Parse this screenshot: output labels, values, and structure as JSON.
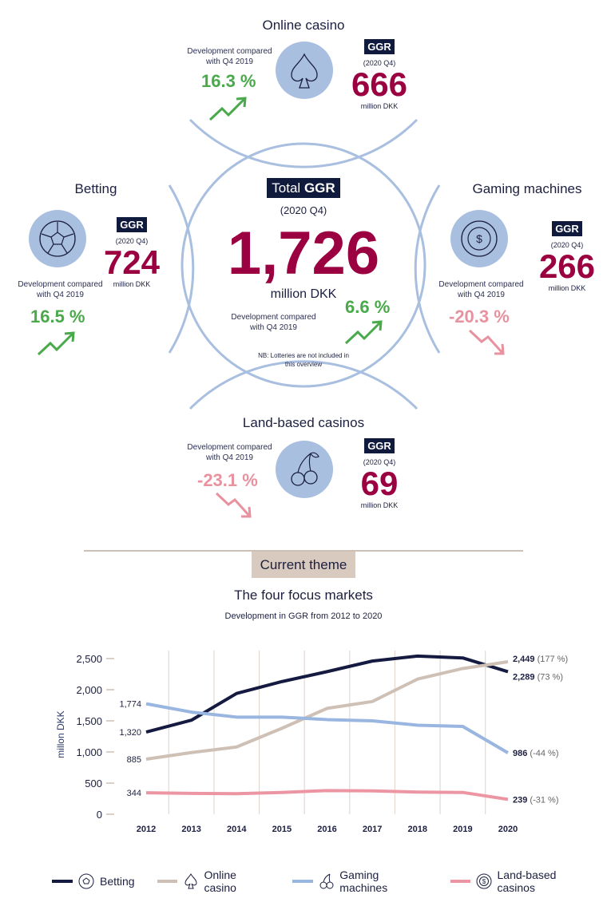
{
  "colors": {
    "accent": "#9b0040",
    "positive": "#4aa94a",
    "negative": "#e8919f",
    "navy": "#0f1a3d",
    "circle": "#a9bfe0",
    "beige": "#cfc0b6"
  },
  "total": {
    "badge_light": "Total",
    "badge_bold": "GGR",
    "period": "(2020 Q4)",
    "value": "1,726",
    "unit": "million DKK",
    "dev_label": "Development compared with Q4 2019",
    "dev_value": "6.6 %",
    "dev_trend": "up",
    "note": "NB: Lotteries are not included in this overview"
  },
  "segments": {
    "online": {
      "title": "Online casino",
      "icon": "spade-icon",
      "dev_label": "Development compared with Q4 2019",
      "dev_value": "16.3 %",
      "trend": "up",
      "badge": "GGR",
      "period": "(2020 Q4)",
      "value": "666",
      "unit": "million DKK"
    },
    "betting": {
      "title": "Betting",
      "icon": "football-icon",
      "dev_label": "Development compared with Q4 2019",
      "dev_value": "16.5 %",
      "trend": "up",
      "badge": "GGR",
      "period": "(2020 Q4)",
      "value": "724",
      "unit": "million DKK"
    },
    "gaming": {
      "title": "Gaming machines",
      "icon": "chip-icon",
      "dev_label": "Development compared with Q4 2019",
      "dev_value": "-20.3 %",
      "trend": "down",
      "badge": "GGR",
      "period": "(2020 Q4)",
      "value": "266",
      "unit": "million DKK"
    },
    "land": {
      "title": "Land-based casinos",
      "icon": "cherry-icon",
      "dev_label": "Development compared with Q4 2019",
      "dev_value": "-23.1 %",
      "trend": "down",
      "badge": "GGR",
      "period": "(2020 Q4)",
      "value": "69",
      "unit": "million DKK"
    }
  },
  "theme_label": "Current theme",
  "chart_data": {
    "type": "line",
    "title": "The four focus markets",
    "subtitle": "Development in GGR from 2012 to 2020",
    "ylabel": "millon DKK",
    "ylim": [
      0,
      2500
    ],
    "yticks": [
      "0",
      "500",
      "1,000",
      "1,500",
      "2,000",
      "2,500"
    ],
    "x": [
      "2012",
      "2013",
      "2014",
      "2015",
      "2016",
      "2017",
      "2018",
      "2019",
      "2020"
    ],
    "grid": "vertical",
    "legend_position": "bottom",
    "series": [
      {
        "name": "Betting",
        "color": "#141a40",
        "icon": "football-icon",
        "values": [
          1320,
          1510,
          1940,
          2130,
          2290,
          2460,
          2540,
          2510,
          2289
        ],
        "start_label": "1,320",
        "end_label": "2,289",
        "end_change": "(73 %)"
      },
      {
        "name": "Online casino",
        "color": "#cfc0b6",
        "icon": "spade-icon",
        "values": [
          885,
          990,
          1080,
          1380,
          1700,
          1810,
          2170,
          2340,
          2449
        ],
        "start_label": "885",
        "end_label": "2,449",
        "end_change": "(177 %)"
      },
      {
        "name": "Gaming machines",
        "color": "#98b6e0",
        "icon": "cherry-icon",
        "values": [
          1774,
          1640,
          1560,
          1560,
          1520,
          1500,
          1430,
          1410,
          986
        ],
        "start_label": "1,774",
        "end_label": "986",
        "end_change": "(-44 %)"
      },
      {
        "name": "Land-based casinos",
        "color": "#ec96a4",
        "icon": "chip-icon",
        "values": [
          344,
          335,
          330,
          350,
          380,
          375,
          355,
          350,
          239
        ],
        "start_label": "344",
        "end_label": "239",
        "end_change": "(-31 %)"
      }
    ]
  }
}
